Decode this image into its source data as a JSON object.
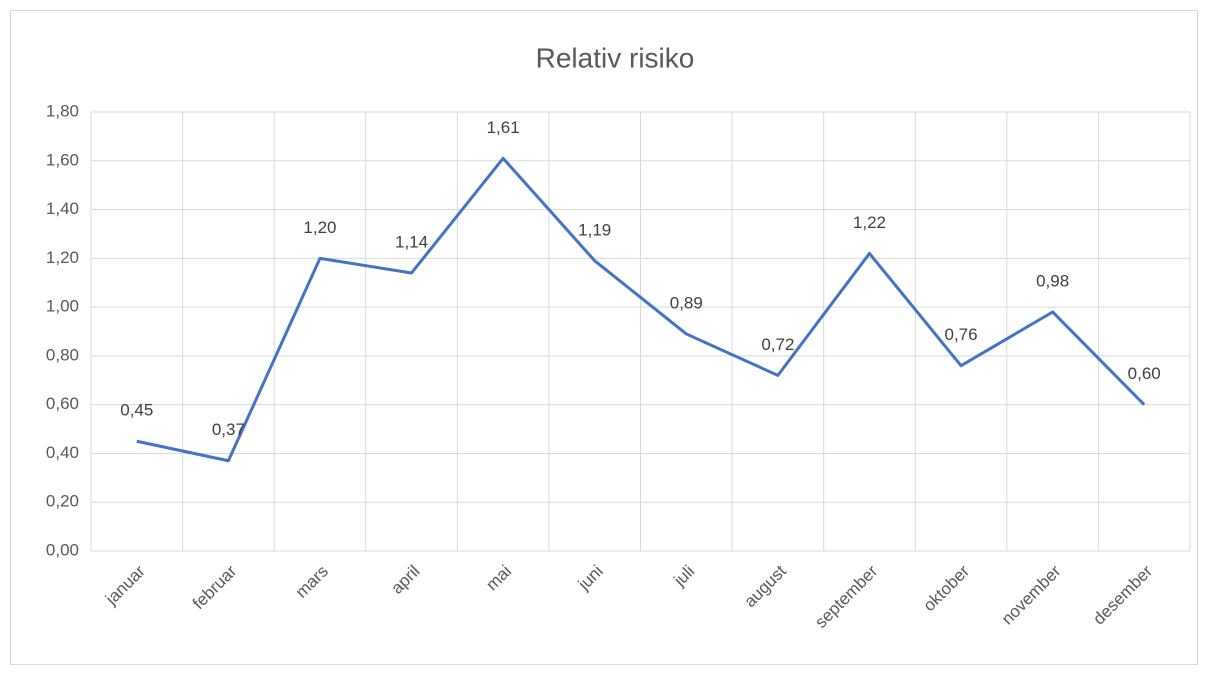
{
  "chart_data": {
    "type": "line",
    "title": "Relativ risiko",
    "categories": [
      "januar",
      "februar",
      "mars",
      "april",
      "mai",
      "juni",
      "juli",
      "august",
      "september",
      "oktober",
      "november",
      "desember"
    ],
    "values": [
      0.45,
      0.37,
      1.2,
      1.14,
      1.61,
      1.19,
      0.89,
      0.72,
      1.22,
      0.76,
      0.98,
      0.6
    ],
    "value_labels": [
      "0,45",
      "0,37",
      "1,20",
      "1,14",
      "1,61",
      "1,19",
      "0,89",
      "0,72",
      "1,22",
      "0,76",
      "0,98",
      "0,60"
    ],
    "color": "#4472c4",
    "ylim": [
      0,
      1.8
    ],
    "yticks": [
      {
        "value": 0,
        "label": "0,00"
      },
      {
        "value": 0.2,
        "label": "0,20"
      },
      {
        "value": 0.4,
        "label": "0,40"
      },
      {
        "value": 0.6,
        "label": "0,60"
      },
      {
        "value": 0.8,
        "label": "0,80"
      },
      {
        "value": 1,
        "label": "1,00"
      },
      {
        "value": 1.2,
        "label": "1,20"
      },
      {
        "value": 1.4,
        "label": "1,40"
      },
      {
        "value": 1.6,
        "label": "1,60"
      },
      {
        "value": 1.8,
        "label": "1,80"
      }
    ],
    "grid": true
  }
}
